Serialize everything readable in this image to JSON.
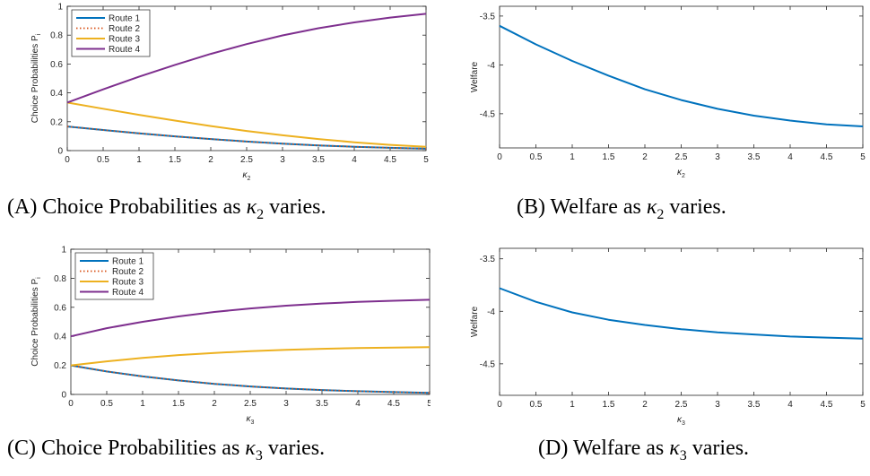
{
  "panels": [
    {
      "id": "A",
      "caption_prefix": "(A) Choice Probabilities as",
      "caption_var": "κ",
      "caption_sub": "2",
      "caption_suffix": "varies."
    },
    {
      "id": "B",
      "caption_prefix": "(B) Welfare as",
      "caption_var": "κ",
      "caption_sub": "2",
      "caption_suffix": "varies."
    },
    {
      "id": "C",
      "caption_prefix": "(C) Choice Probabilities as",
      "caption_var": "κ",
      "caption_sub": "3",
      "caption_suffix": "varies."
    },
    {
      "id": "D",
      "caption_prefix": "(D) Welfare as",
      "caption_var": "κ",
      "caption_sub": "3",
      "caption_suffix": "varies."
    }
  ],
  "chart_data": [
    {
      "panel": "A",
      "type": "line",
      "xlabel": "κ",
      "xlabel_sub": "2",
      "ylabel": "Choice Probabilities P",
      "ylabel_sub": "i",
      "xlim": [
        0,
        5
      ],
      "ylim": [
        0,
        1
      ],
      "xticks": [
        0,
        0.5,
        1,
        1.5,
        2,
        2.5,
        3,
        3.5,
        4,
        4.5,
        5
      ],
      "xtick_labels": [
        "0",
        "0.5",
        "1",
        "1.5",
        "2",
        "2.5",
        "3",
        "3.5",
        "4",
        "4.5",
        "5"
      ],
      "yticks": [
        0,
        0.2,
        0.4,
        0.6,
        0.8,
        1
      ],
      "ytick_labels": [
        "0",
        "0.2",
        "0.4",
        "0.6",
        "0.8",
        "1"
      ],
      "legend": "top-left",
      "x": [
        0,
        0.5,
        1,
        1.5,
        2,
        2.5,
        3,
        3.5,
        4,
        4.5,
        5
      ],
      "series": [
        {
          "name": "Route 1",
          "color": "#0072BD",
          "dash": "solid",
          "values": [
            0.167,
            0.143,
            0.12,
            0.099,
            0.08,
            0.063,
            0.048,
            0.036,
            0.027,
            0.019,
            0.013
          ]
        },
        {
          "name": "Route 2",
          "color": "#D95319",
          "dash": "dotted",
          "values": [
            0.167,
            0.143,
            0.12,
            0.099,
            0.08,
            0.063,
            0.048,
            0.036,
            0.027,
            0.019,
            0.013
          ]
        },
        {
          "name": "Route 3",
          "color": "#EDB120",
          "dash": "solid",
          "values": [
            0.333,
            0.29,
            0.248,
            0.208,
            0.17,
            0.136,
            0.106,
            0.08,
            0.058,
            0.04,
            0.026
          ]
        },
        {
          "name": "Route 4",
          "color": "#7E2F8E",
          "dash": "solid",
          "values": [
            0.333,
            0.424,
            0.512,
            0.594,
            0.67,
            0.738,
            0.798,
            0.848,
            0.888,
            0.922,
            0.948
          ]
        }
      ]
    },
    {
      "panel": "B",
      "type": "line",
      "xlabel": "κ",
      "xlabel_sub": "2",
      "ylabel": "Welfare",
      "ylabel_sub": "",
      "xlim": [
        0,
        5
      ],
      "ylim": [
        -4.85,
        -3.4
      ],
      "xticks": [
        0,
        0.5,
        1,
        1.5,
        2,
        2.5,
        3,
        3.5,
        4,
        4.5,
        5
      ],
      "xtick_labels": [
        "0",
        "0.5",
        "1",
        "1.5",
        "2",
        "2.5",
        "3",
        "3.5",
        "4",
        "4.5",
        "5"
      ],
      "yticks": [
        -4.5,
        -4,
        -3.5
      ],
      "ytick_labels": [
        "-4.5",
        "-4",
        "-3.5"
      ],
      "legend": "none",
      "x": [
        0,
        0.5,
        1,
        1.5,
        2,
        2.5,
        3,
        3.5,
        4,
        4.5,
        5
      ],
      "series": [
        {
          "color": "#0072BD",
          "dash": "solid",
          "values": [
            -3.6,
            -3.79,
            -3.96,
            -4.11,
            -4.25,
            -4.36,
            -4.45,
            -4.52,
            -4.57,
            -4.61,
            -4.63
          ]
        }
      ]
    },
    {
      "panel": "C",
      "type": "line",
      "xlabel": "κ",
      "xlabel_sub": "3",
      "ylabel": "Choice Probabilities P",
      "ylabel_sub": "i",
      "xlim": [
        0,
        5
      ],
      "ylim": [
        0,
        1
      ],
      "xticks": [
        0,
        0.5,
        1,
        1.5,
        2,
        2.5,
        3,
        3.5,
        4,
        4.5,
        5
      ],
      "xtick_labels": [
        "0",
        "0.5",
        "1",
        "1.5",
        "2",
        "2.5",
        "3",
        "3.5",
        "4",
        "4.5",
        "5"
      ],
      "yticks": [
        0,
        0.2,
        0.4,
        0.6,
        0.8,
        1
      ],
      "ytick_labels": [
        "0",
        "0.2",
        "0.4",
        "0.6",
        "0.8",
        "1"
      ],
      "legend": "top-left",
      "x": [
        0,
        0.5,
        1,
        1.5,
        2,
        2.5,
        3,
        3.5,
        4,
        4.5,
        5
      ],
      "series": [
        {
          "name": "Route 1",
          "color": "#0072BD",
          "dash": "solid",
          "values": [
            0.2,
            0.158,
            0.124,
            0.096,
            0.073,
            0.055,
            0.041,
            0.03,
            0.022,
            0.016,
            0.011
          ]
        },
        {
          "name": "Route 2",
          "color": "#D95319",
          "dash": "dotted",
          "values": [
            0.2,
            0.158,
            0.124,
            0.096,
            0.073,
            0.055,
            0.041,
            0.03,
            0.022,
            0.016,
            0.011
          ]
        },
        {
          "name": "Route 3",
          "color": "#EDB120",
          "dash": "solid",
          "values": [
            0.2,
            0.228,
            0.252,
            0.271,
            0.286,
            0.298,
            0.307,
            0.314,
            0.319,
            0.323,
            0.326
          ]
        },
        {
          "name": "Route 4",
          "color": "#7E2F8E",
          "dash": "solid",
          "values": [
            0.4,
            0.456,
            0.5,
            0.537,
            0.568,
            0.592,
            0.611,
            0.626,
            0.637,
            0.645,
            0.652
          ]
        }
      ]
    },
    {
      "panel": "D",
      "type": "line",
      "xlabel": "κ",
      "xlabel_sub": "3",
      "ylabel": "Welfare",
      "ylabel_sub": "",
      "xlim": [
        0,
        5
      ],
      "ylim": [
        -4.8,
        -3.4
      ],
      "xticks": [
        0,
        0.5,
        1,
        1.5,
        2,
        2.5,
        3,
        3.5,
        4,
        4.5,
        5
      ],
      "xtick_labels": [
        "0",
        "0.5",
        "1",
        "1.5",
        "2",
        "2.5",
        "3",
        "3.5",
        "4",
        "4.5",
        "5"
      ],
      "yticks": [
        -4.5,
        -4,
        -3.5
      ],
      "ytick_labels": [
        "-4.5",
        "-4",
        "-3.5"
      ],
      "legend": "none",
      "x": [
        0,
        0.5,
        1,
        1.5,
        2,
        2.5,
        3,
        3.5,
        4,
        4.5,
        5
      ],
      "series": [
        {
          "color": "#0072BD",
          "dash": "solid",
          "values": [
            -3.78,
            -3.91,
            -4.01,
            -4.08,
            -4.13,
            -4.17,
            -4.2,
            -4.22,
            -4.24,
            -4.25,
            -4.26
          ]
        }
      ]
    }
  ]
}
